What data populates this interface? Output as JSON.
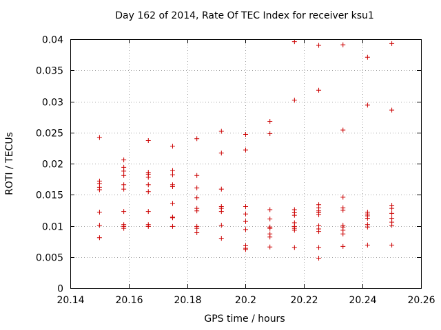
{
  "chart_data": {
    "type": "scatter",
    "title": "Day 162 of 2014, Rate Of TEC Index for receiver ksu1",
    "xlabel": "GPS time / hours",
    "ylabel": "ROTI / TECUs",
    "xlim": [
      20.14,
      20.26
    ],
    "ylim": [
      0,
      0.04
    ],
    "xticks": [
      "20.14",
      "20.16",
      "20.18",
      "20.2",
      "20.22",
      "20.24",
      "20.26"
    ],
    "yticks": [
      "0",
      "0.005",
      "0.01",
      "0.015",
      "0.02",
      "0.025",
      "0.03",
      "0.035",
      "0.04"
    ],
    "grid": true,
    "marker": "+",
    "color": "#cc0000",
    "series": [
      {
        "name": "ksu1",
        "points": [
          [
            20.15,
            0.0242
          ],
          [
            20.15,
            0.0172
          ],
          [
            20.15,
            0.0168
          ],
          [
            20.15,
            0.0162
          ],
          [
            20.15,
            0.0158
          ],
          [
            20.15,
            0.0122
          ],
          [
            20.15,
            0.0101
          ],
          [
            20.15,
            0.0081
          ],
          [
            20.1583,
            0.0206
          ],
          [
            20.1583,
            0.0194
          ],
          [
            20.1583,
            0.0188
          ],
          [
            20.1583,
            0.0181
          ],
          [
            20.1583,
            0.0166
          ],
          [
            20.1583,
            0.0159
          ],
          [
            20.1583,
            0.0123
          ],
          [
            20.1583,
            0.0102
          ],
          [
            20.1583,
            0.0099
          ],
          [
            20.1583,
            0.0096
          ],
          [
            20.1667,
            0.0237
          ],
          [
            20.1667,
            0.0186
          ],
          [
            20.1667,
            0.0183
          ],
          [
            20.1667,
            0.0178
          ],
          [
            20.1667,
            0.0166
          ],
          [
            20.1667,
            0.0155
          ],
          [
            20.1667,
            0.0123
          ],
          [
            20.1667,
            0.0102
          ],
          [
            20.1667,
            0.0099
          ],
          [
            20.175,
            0.0228
          ],
          [
            20.175,
            0.0189
          ],
          [
            20.175,
            0.0182
          ],
          [
            20.175,
            0.0166
          ],
          [
            20.175,
            0.0163
          ],
          [
            20.175,
            0.0136
          ],
          [
            20.175,
            0.0114
          ],
          [
            20.175,
            0.0113
          ],
          [
            20.175,
            0.0099
          ],
          [
            20.1833,
            0.024
          ],
          [
            20.1833,
            0.0181
          ],
          [
            20.1833,
            0.0161
          ],
          [
            20.1833,
            0.0145
          ],
          [
            20.1833,
            0.0128
          ],
          [
            20.1833,
            0.0124
          ],
          [
            20.1833,
            0.0099
          ],
          [
            20.1833,
            0.0096
          ],
          [
            20.1833,
            0.0089
          ],
          [
            20.1917,
            0.0252
          ],
          [
            20.1917,
            0.0217
          ],
          [
            20.1917,
            0.0159
          ],
          [
            20.1917,
            0.0131
          ],
          [
            20.1917,
            0.0128
          ],
          [
            20.1917,
            0.0123
          ],
          [
            20.1917,
            0.0101
          ],
          [
            20.1917,
            0.008
          ],
          [
            20.2,
            0.0247
          ],
          [
            20.2,
            0.0222
          ],
          [
            20.2,
            0.0131
          ],
          [
            20.2,
            0.0119
          ],
          [
            20.2,
            0.0107
          ],
          [
            20.2,
            0.0094
          ],
          [
            20.2,
            0.0068
          ],
          [
            20.2,
            0.0064
          ],
          [
            20.2,
            0.0062
          ],
          [
            20.2083,
            0.0268
          ],
          [
            20.2083,
            0.0248
          ],
          [
            20.2083,
            0.0126
          ],
          [
            20.2083,
            0.0111
          ],
          [
            20.2083,
            0.0098
          ],
          [
            20.2083,
            0.0096
          ],
          [
            20.2083,
            0.0087
          ],
          [
            20.2083,
            0.0082
          ],
          [
            20.2083,
            0.0066
          ],
          [
            20.2167,
            0.0396
          ],
          [
            20.2167,
            0.0302
          ],
          [
            20.2167,
            0.0126
          ],
          [
            20.2167,
            0.0121
          ],
          [
            20.2167,
            0.0117
          ],
          [
            20.2167,
            0.0105
          ],
          [
            20.2167,
            0.0099
          ],
          [
            20.2167,
            0.0096
          ],
          [
            20.2167,
            0.0093
          ],
          [
            20.2167,
            0.0065
          ],
          [
            20.225,
            0.039
          ],
          [
            20.225,
            0.0318
          ],
          [
            20.225,
            0.0134
          ],
          [
            20.225,
            0.0129
          ],
          [
            20.225,
            0.0124
          ],
          [
            20.225,
            0.0121
          ],
          [
            20.225,
            0.0118
          ],
          [
            20.225,
            0.01
          ],
          [
            20.225,
            0.0095
          ],
          [
            20.225,
            0.0091
          ],
          [
            20.225,
            0.0065
          ],
          [
            20.225,
            0.0048
          ],
          [
            20.2333,
            0.0391
          ],
          [
            20.2333,
            0.0254
          ],
          [
            20.2333,
            0.0146
          ],
          [
            20.2333,
            0.0129
          ],
          [
            20.2333,
            0.0125
          ],
          [
            20.2333,
            0.0101
          ],
          [
            20.2333,
            0.0098
          ],
          [
            20.2333,
            0.0093
          ],
          [
            20.2333,
            0.0087
          ],
          [
            20.2333,
            0.0067
          ],
          [
            20.2417,
            0.0371
          ],
          [
            20.2417,
            0.0294
          ],
          [
            20.2417,
            0.0122
          ],
          [
            20.2417,
            0.0119
          ],
          [
            20.2417,
            0.0116
          ],
          [
            20.2417,
            0.0112
          ],
          [
            20.2417,
            0.0102
          ],
          [
            20.2417,
            0.0098
          ],
          [
            20.2417,
            0.0069
          ],
          [
            20.25,
            0.0393
          ],
          [
            20.25,
            0.0286
          ],
          [
            20.25,
            0.0133
          ],
          [
            20.25,
            0.0128
          ],
          [
            20.25,
            0.012
          ],
          [
            20.25,
            0.0112
          ],
          [
            20.25,
            0.0106
          ],
          [
            20.25,
            0.0101
          ],
          [
            20.25,
            0.0069
          ]
        ]
      }
    ]
  }
}
